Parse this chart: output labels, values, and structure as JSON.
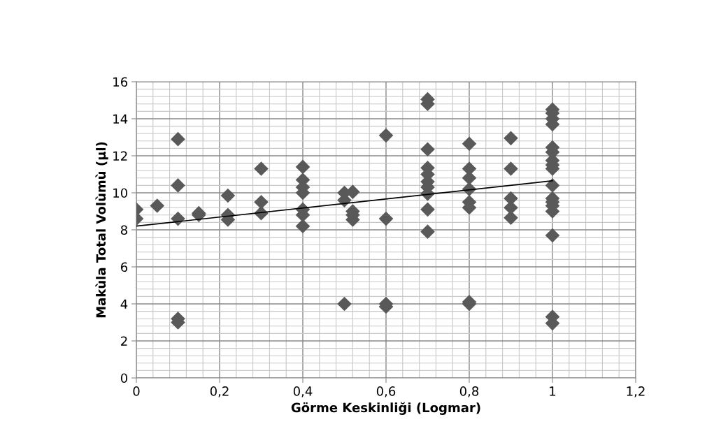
{
  "chart_data": {
    "type": "scatter",
    "xlabel": "Görme Keskinliği (Logmar)",
    "ylabel": "Makùla Total Volùmù (µl)",
    "xlim": [
      0,
      1.2
    ],
    "xticks": [
      0,
      {
        "value": 0.2,
        "label": "0,2"
      },
      {
        "value": 0.4,
        "label": "0,4"
      },
      {
        "value": 0.6,
        "label": "0,6"
      },
      {
        "value": 0.8,
        "label": "0,8"
      },
      1,
      {
        "value": 1.2,
        "label": "1,2"
      }
    ],
    "ylim": [
      0,
      16
    ],
    "yticks": [
      0,
      2,
      4,
      6,
      8,
      10,
      12,
      14,
      16
    ],
    "grid": true,
    "marker": "diamond",
    "series": [
      {
        "color": "#595959",
        "x": [
          0,
          0,
          0.05,
          0.1,
          0.1,
          0.1,
          0.1,
          0.1,
          0.15,
          0.15,
          0.22,
          0.22,
          0.22,
          0.3,
          0.3,
          0.3,
          0.4,
          0.4,
          0.4,
          0.4,
          0.4,
          0.4,
          0.4,
          0.5,
          0.5,
          0.5,
          0.52,
          0.52,
          0.52,
          0.52,
          0.6,
          0.6,
          0.6,
          0.6,
          0.7,
          0.7,
          0.7,
          0.7,
          0.7,
          0.7,
          0.7,
          0.7,
          0.7,
          0.7,
          0.8,
          0.8,
          0.8,
          0.8,
          0.8,
          0.8,
          0.8,
          0.8,
          0.9,
          0.9,
          0.9,
          0.9,
          0.9,
          1,
          1,
          1,
          1,
          1,
          1,
          1,
          1,
          1,
          1,
          1,
          1,
          1,
          1,
          1,
          1,
          1
        ],
        "values": [
          9.1,
          8.6,
          9.3,
          12.9,
          10.4,
          8.6,
          3.2,
          3.0,
          8.9,
          8.8,
          9.85,
          8.8,
          8.55,
          11.3,
          9.5,
          8.9,
          11.4,
          10.7,
          10.3,
          10.0,
          9.1,
          8.8,
          8.2,
          10.0,
          9.6,
          4.0,
          10.05,
          9.0,
          8.8,
          8.55,
          13.1,
          8.6,
          4.0,
          3.85,
          15.05,
          14.8,
          12.35,
          11.35,
          11.0,
          10.6,
          10.3,
          9.95,
          9.1,
          7.9,
          12.65,
          11.3,
          10.8,
          10.2,
          9.5,
          9.2,
          4.1,
          4.0,
          12.95,
          11.3,
          9.7,
          9.2,
          8.65,
          14.5,
          14.3,
          14.0,
          13.7,
          12.45,
          12.2,
          11.75,
          11.5,
          11.3,
          10.4,
          9.7,
          9.5,
          9.3,
          9.0,
          7.7,
          3.3,
          2.95
        ]
      },
      {
        "type": "line",
        "color": "#000000",
        "marker": "none",
        "x": [
          0,
          1
        ],
        "values": [
          8.2,
          10.65
        ]
      }
    ]
  }
}
